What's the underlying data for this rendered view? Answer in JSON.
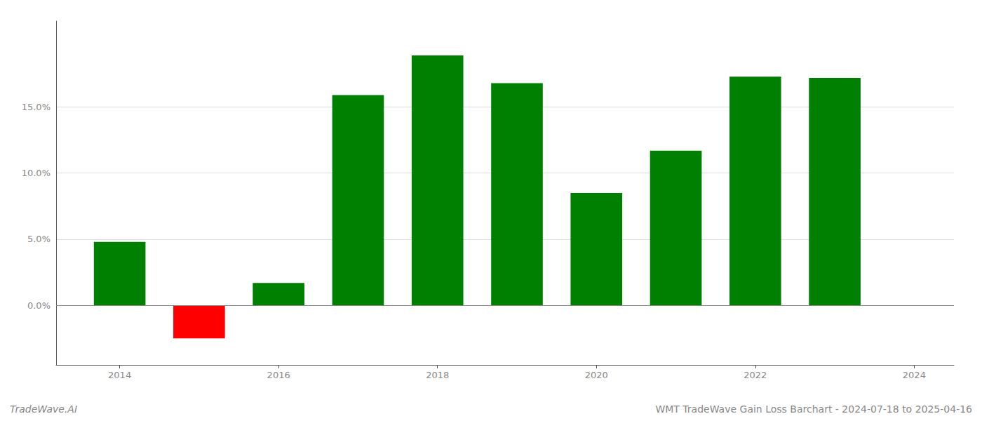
{
  "chart_data": {
    "type": "bar",
    "title": "WMT TradeWave Gain Loss Barchart - 2024-07-18 to 2025-04-16",
    "annotations": [
      "TradeWave.AI"
    ],
    "x": [
      2014,
      2015,
      2016,
      2017,
      2018,
      2019,
      2020,
      2021,
      2022,
      2023
    ],
    "values": [
      4.8,
      -2.5,
      1.7,
      15.9,
      18.9,
      16.8,
      8.5,
      11.7,
      17.3,
      17.2
    ],
    "colors": [
      "#008000",
      "#ff0000",
      "#008000",
      "#008000",
      "#008000",
      "#008000",
      "#008000",
      "#008000",
      "#008000",
      "#008000"
    ],
    "xlim": [
      2013.2,
      2024.5
    ],
    "xticks": [
      2014,
      2016,
      2018,
      2020,
      2022,
      2024
    ],
    "ylim": [
      -4.5,
      21.5
    ],
    "yticks": [
      {
        "value": 0.0,
        "label": "0.0%"
      },
      {
        "value": 5.0,
        "label": "5.0%"
      },
      {
        "value": 10.0,
        "label": "10.0%"
      },
      {
        "value": 15.0,
        "label": "15.0%"
      }
    ],
    "grid": "y"
  }
}
